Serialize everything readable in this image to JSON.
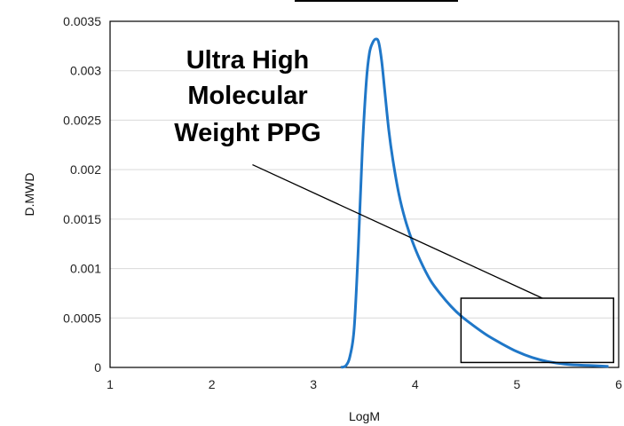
{
  "chart_data": {
    "type": "line",
    "xlabel": "LogM",
    "ylabel": "D.MWD",
    "xlim": [
      1,
      6
    ],
    "ylim": [
      0,
      0.0035
    ],
    "x_ticks": [
      "1",
      "2",
      "3",
      "4",
      "5",
      "6"
    ],
    "y_ticks": [
      "0",
      "0.0005",
      "0.001",
      "0.0015",
      "0.002",
      "0.0025",
      "0.003",
      "0.0035"
    ],
    "grid": "horizontal",
    "series": [
      {
        "color": "#1f77c8",
        "x": [
          3.27,
          3.32,
          3.36,
          3.4,
          3.44,
          3.48,
          3.52,
          3.55,
          3.58,
          3.61,
          3.64,
          3.67,
          3.7,
          3.74,
          3.78,
          3.84,
          3.9,
          3.97,
          4.05,
          4.15,
          4.25,
          4.35,
          4.45,
          4.55,
          4.7,
          4.85,
          5.0,
          5.15,
          5.3,
          5.5,
          5.7,
          5.9
        ],
        "y": [
          0.0,
          2e-05,
          0.00012,
          0.0004,
          0.0012,
          0.0022,
          0.0029,
          0.00318,
          0.00328,
          0.00332,
          0.00329,
          0.0031,
          0.0028,
          0.0024,
          0.0021,
          0.00175,
          0.0015,
          0.00128,
          0.00108,
          0.00088,
          0.00074,
          0.00062,
          0.00052,
          0.00044,
          0.00033,
          0.00024,
          0.00016,
          0.0001,
          6e-05,
          3e-05,
          2e-05,
          1e-05
        ]
      }
    ],
    "annotation": {
      "lines": [
        "Ultra High",
        "Molecular",
        "Weight PPG"
      ],
      "box": {
        "x": [
          4.45,
          5.95
        ],
        "y": [
          5e-05,
          0.0007
        ]
      },
      "leader_from": [
        2.4,
        0.00205
      ],
      "leader_to": [
        5.25,
        0.0007
      ]
    },
    "colors": {
      "axis": "#000000",
      "grid": "#d9d9d9",
      "line": "#1f77c8"
    }
  }
}
